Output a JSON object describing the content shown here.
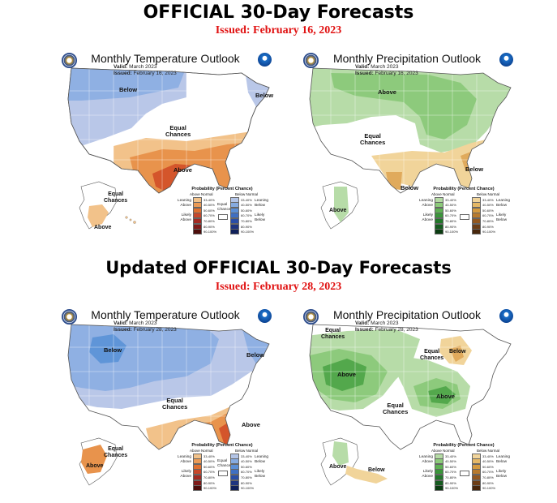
{
  "header": {
    "title_top": "OFFICIAL 30-Day Forecasts",
    "issued_top": "Issued: February 16, 2023",
    "title_bottom": "Updated OFFICIAL 30-Day Forecasts",
    "issued_bottom": "Issued: February 28, 2023"
  },
  "panels": {
    "temp_feb16": {
      "title": "Monthly Temperature Outlook",
      "valid_label": "Valid:",
      "valid_value": "March 2023",
      "issued_label": "Issued:",
      "issued_value": "February 16, 2023",
      "labels": [
        "Below",
        "Below",
        "Equal\nChances",
        "Above",
        "Equal\nChances",
        "Above"
      ]
    },
    "precip_feb16": {
      "title": "Monthly Precipitation Outlook",
      "valid_label": "Valid:",
      "valid_value": "March 2023",
      "issued_label": "Issued:",
      "issued_value": "February 16, 2023",
      "labels": [
        "Above",
        "Below",
        "Equal\nChances",
        "Below",
        "Above"
      ]
    },
    "temp_feb28": {
      "title": "Monthly Temperature Outlook",
      "valid_label": "Valid:",
      "valid_value": "March 2023",
      "issued_label": "Issued:",
      "issued_value": "February 28, 2023",
      "labels": [
        "Below",
        "Below",
        "Equal\nChances",
        "Above",
        "Equal\nChances",
        "Above"
      ]
    },
    "precip_feb28": {
      "title": "Monthly Precipitation Outlook",
      "valid_label": "Valid:",
      "valid_value": "March 2023",
      "issued_label": "Issued:",
      "issued_value": "February 28, 2023",
      "labels": [
        "Equal\nChances",
        "Above",
        "Equal\nChances",
        "Below",
        "Equal\nChances",
        "Above",
        "Above",
        "Below"
      ]
    }
  },
  "legend_temp": {
    "title": "Probability (Percent Chance)",
    "left_head": "Above Normal",
    "right_head": "Below Normal",
    "ranges": [
      "33-40%",
      "40-50%",
      "50-60%",
      "60-70%",
      "70-80%",
      "80-90%",
      "90-100%"
    ],
    "left_colors": [
      "#f2c28a",
      "#eb9a55",
      "#e0702f",
      "#c8472a",
      "#a32a22",
      "#7f1a18",
      "#4d0d0b"
    ],
    "right_colors": [
      "#b3c4e6",
      "#86abe0",
      "#5b8fd6",
      "#3f6fc2",
      "#2a4ea6",
      "#1f3580",
      "#10205a"
    ],
    "leaning_above": "Leaning\nAbove",
    "likely_above": "Likely\nAbove",
    "equal": "Equal\nChances",
    "leaning_below": "Leaning\nBelow",
    "likely_below": "Likely\nBelow"
  },
  "legend_precip": {
    "title": "Probability (Percent Chance)",
    "left_head": "Above Normal",
    "right_head": "Below Normal",
    "ranges": [
      "33-40%",
      "40-50%",
      "50-60%",
      "60-70%",
      "70-80%",
      "80-90%",
      "90-100%"
    ],
    "left_colors": [
      "#b5dba5",
      "#8ccb7a",
      "#5eb153",
      "#3a963a",
      "#22782a",
      "#155c1f",
      "#0b3d12"
    ],
    "right_colors": [
      "#f1d49a",
      "#e5b866",
      "#d59a3e",
      "#b87a2c",
      "#93581f",
      "#6d3e16",
      "#48270c"
    ],
    "leaning_above": "Leaning\nAbove",
    "likely_above": "Likely\nAbove",
    "equal": "",
    "leaning_below": "Leaning\nBelow",
    "likely_below": "Likely\nBelow"
  },
  "colors": {
    "issued_red": "#e01010",
    "temp_below_light": "#b9c7e8",
    "temp_below_mid": "#8fb0e3",
    "temp_below_strong": "#5f95d8",
    "temp_above_light": "#f2c28a",
    "temp_above_mid": "#e8934c",
    "temp_above_strong": "#d4552b",
    "precip_above_light": "#b7dca8",
    "precip_above_mid": "#8dca7c",
    "precip_above_strong": "#53a84c",
    "precip_below_light": "#f1d49a",
    "precip_below_mid": "#e0aa5c"
  },
  "icons": [
    "noaa-seal-icon",
    "nws-logo-icon"
  ]
}
